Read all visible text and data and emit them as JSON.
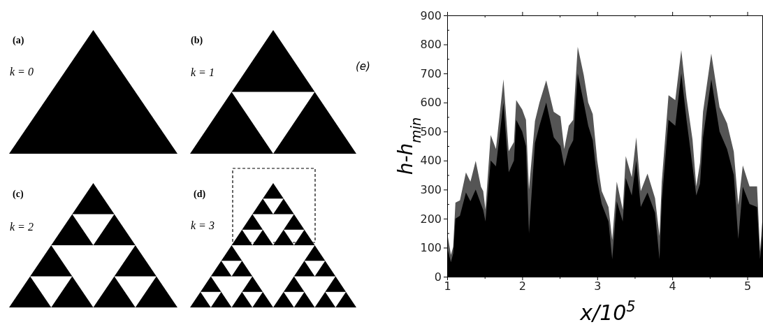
{
  "chart_data": {
    "type": "area",
    "xlabel": "x/10$^{5}$",
    "ylabel": "h-h$_{min}$",
    "annotations": [
      "(a)",
      "k = 0",
      "(b)",
      "k = 1",
      "(c)",
      "k = 2",
      "(d)",
      "k = 3",
      "(e)"
    ],
    "x": [
      1.0,
      1.05,
      1.08,
      1.11,
      1.17,
      1.25,
      1.31,
      1.38,
      1.45,
      1.48,
      1.51,
      1.58,
      1.65,
      1.75,
      1.82,
      1.89,
      1.92,
      2.0,
      2.05,
      2.09,
      2.17,
      2.23,
      2.32,
      2.42,
      2.51,
      2.56,
      2.62,
      2.68,
      2.74,
      2.82,
      2.88,
      2.94,
      3.0,
      3.06,
      3.15,
      3.2,
      3.26,
      3.34,
      3.38,
      3.46,
      3.52,
      3.58,
      3.67,
      3.77,
      3.83,
      3.86,
      3.95,
      4.04,
      4.12,
      4.19,
      4.27,
      4.32,
      4.37,
      4.41,
      4.52,
      4.63,
      4.73,
      4.82,
      4.88,
      4.94,
      5.03,
      5.13,
      5.17,
      5.2
    ],
    "series": [
      {
        "color": "#555555",
        "values": [
          151,
          75,
          103,
          255,
          263,
          359,
          327,
          399,
          310,
          295,
          231,
          488,
          440,
          680,
          432,
          464,
          608,
          576,
          540,
          300,
          536,
          600,
          676,
          568,
          552,
          440,
          520,
          540,
          792,
          695,
          600,
          560,
          400,
          295,
          240,
          127,
          327,
          231,
          415,
          343,
          480,
          295,
          355,
          271,
          140,
          327,
          625,
          608,
          780,
          616,
          472,
          311,
          392,
          568,
          768,
          584,
          528,
          431,
          247,
          383,
          311,
          311,
          87,
          190
        ]
      },
      {
        "color": "#000000",
        "values": [
          100,
          50,
          80,
          200,
          210,
          290,
          260,
          300,
          250,
          230,
          190,
          400,
          380,
          600,
          360,
          400,
          540,
          500,
          450,
          150,
          460,
          520,
          600,
          480,
          450,
          380,
          440,
          470,
          700,
          600,
          520,
          470,
          330,
          250,
          190,
          60,
          260,
          190,
          340,
          280,
          400,
          240,
          290,
          220,
          60,
          260,
          540,
          520,
          700,
          540,
          380,
          280,
          320,
          480,
          680,
          500,
          440,
          350,
          130,
          310,
          250,
          240,
          60,
          140
        ]
      }
    ],
    "xlim": [
      1,
      5.2
    ],
    "xticks": [
      1,
      {
        "value": 1.5,
        "label": null
      },
      2,
      {
        "value": 2.5,
        "label": null
      },
      3,
      {
        "value": 3.5,
        "label": null
      },
      4,
      {
        "value": 4.5,
        "label": null
      },
      5
    ],
    "ylim": [
      0,
      900
    ],
    "yticks": [
      0,
      {
        "value": 50,
        "label": null
      },
      100,
      {
        "value": 150,
        "label": null
      },
      200,
      {
        "value": 250,
        "label": null
      },
      300,
      {
        "value": 350,
        "label": null
      },
      400,
      {
        "value": 450,
        "label": null
      },
      500,
      {
        "value": 550,
        "label": null
      },
      600,
      {
        "value": 650,
        "label": null
      },
      700,
      {
        "value": 750,
        "label": null
      },
      800,
      {
        "value": 850,
        "label": null
      },
      900
    ]
  }
}
